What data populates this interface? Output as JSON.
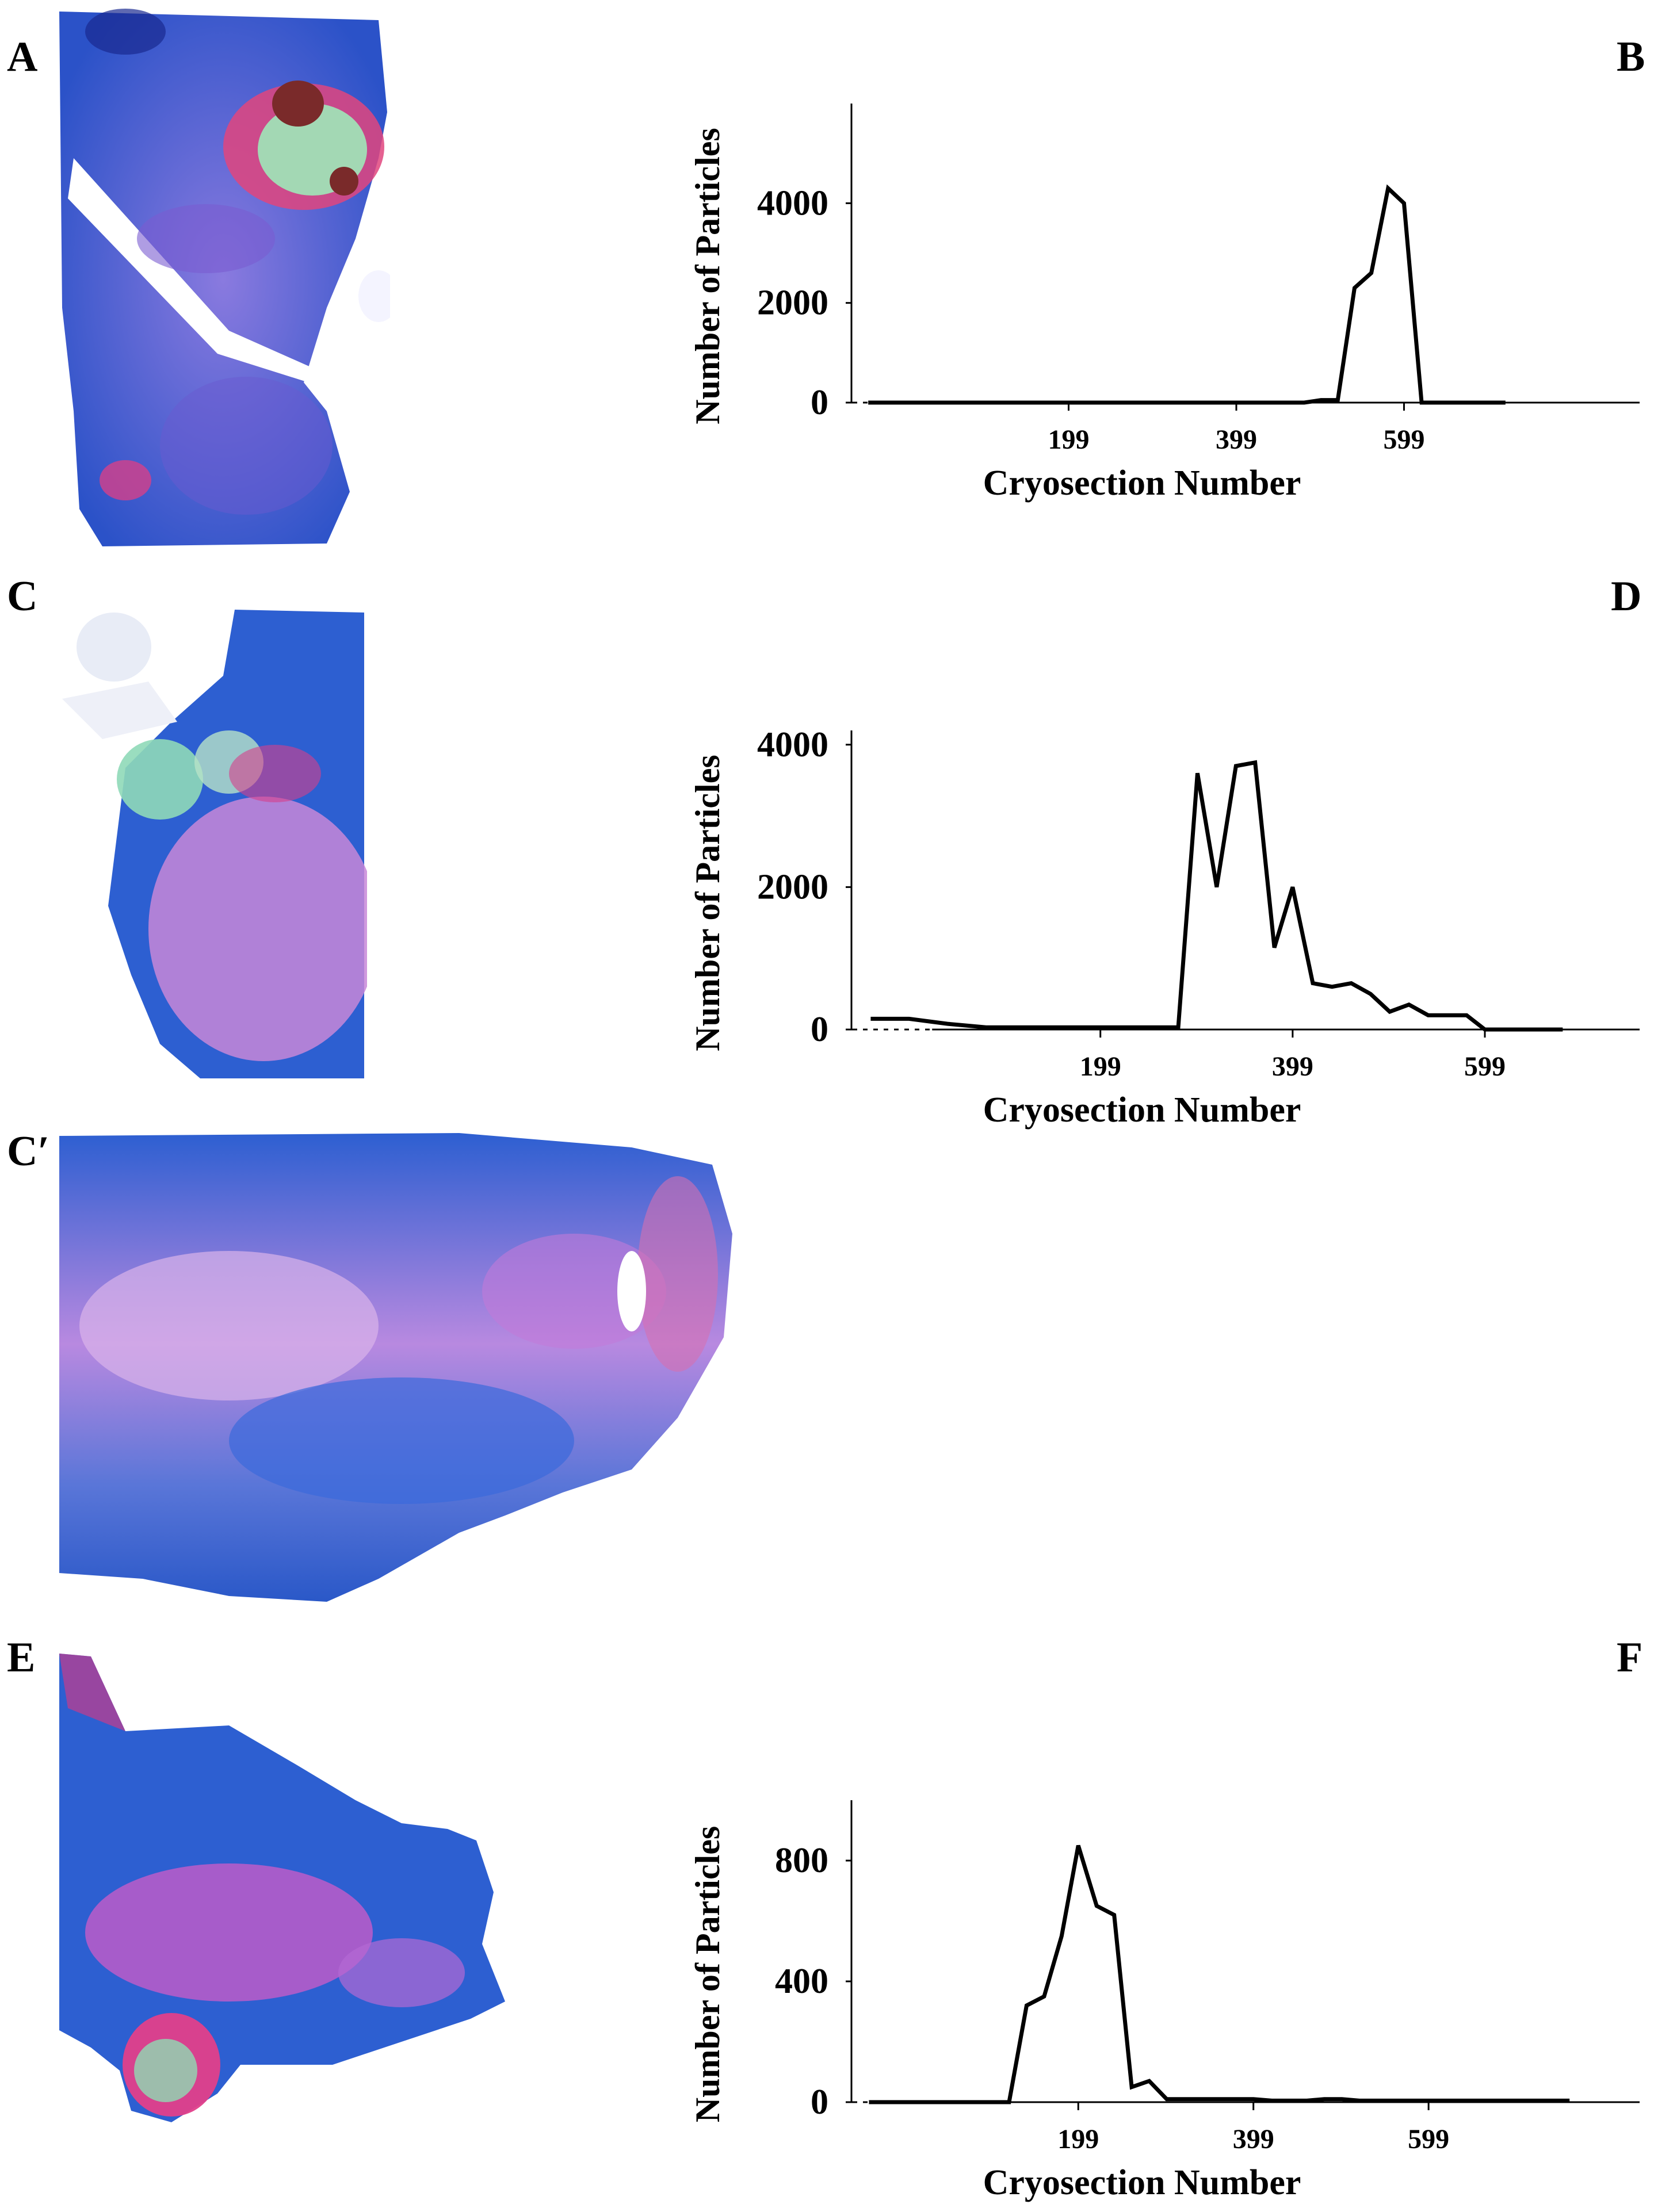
{
  "panels": {
    "A": {
      "label": "A"
    },
    "B": {
      "label": "B"
    },
    "C": {
      "label": "C"
    },
    "D": {
      "label": "D"
    },
    "Cprime": {
      "label": "C′"
    },
    "E": {
      "label": "E"
    },
    "F": {
      "label": "F"
    }
  },
  "colors": {
    "stain_blue": "#2d5fd1",
    "stain_pink": "#c77ad6",
    "stain_magenta": "#e0357e",
    "stain_green": "#7ee0b0",
    "line": "#000000"
  },
  "chart_data": [
    {
      "id": "B",
      "type": "line",
      "title": "",
      "xlabel": "Cryosection Number",
      "ylabel": "Number of Particles",
      "xlim": [
        -60,
        880
      ],
      "ylim": [
        0,
        6000
      ],
      "xticks": [
        199,
        399,
        599
      ],
      "yticks": [
        0,
        2000,
        4000
      ],
      "series": [
        {
          "name": "B",
          "x": [
            -40,
            0,
            40,
            80,
            120,
            160,
            199,
            240,
            280,
            320,
            360,
            399,
            440,
            480,
            500,
            520,
            540,
            560,
            580,
            599,
            620,
            640,
            680,
            720
          ],
          "y": [
            0,
            0,
            0,
            0,
            0,
            0,
            0,
            0,
            0,
            0,
            0,
            0,
            0,
            0,
            50,
            50,
            2300,
            2600,
            4300,
            4000,
            0,
            0,
            0,
            0
          ]
        }
      ]
    },
    {
      "id": "D",
      "type": "line",
      "title": "",
      "xlabel": "Cryosection Number",
      "ylabel": "Number of Particles",
      "xlim": [
        -60,
        760
      ],
      "ylim": [
        0,
        4200
      ],
      "xticks": [
        199,
        399,
        599
      ],
      "yticks": [
        0,
        2000,
        4000
      ],
      "series": [
        {
          "name": "D",
          "x": [
            -40,
            -20,
            0,
            40,
            80,
            120,
            160,
            199,
            240,
            280,
            300,
            320,
            340,
            360,
            380,
            399,
            420,
            440,
            460,
            480,
            500,
            520,
            540,
            560,
            580,
            599,
            620,
            640,
            660,
            680
          ],
          "y": [
            150,
            150,
            150,
            80,
            30,
            30,
            30,
            30,
            30,
            30,
            3600,
            2000,
            3700,
            3750,
            1150,
            2000,
            650,
            600,
            650,
            500,
            250,
            350,
            200,
            200,
            200,
            0,
            0,
            0,
            0,
            0
          ]
        }
      ]
    },
    {
      "id": "F",
      "type": "line",
      "title": "",
      "xlabel": "Cryosection Number",
      "ylabel": "Number of Particles",
      "xlim": [
        -60,
        840
      ],
      "ylim": [
        0,
        1000
      ],
      "xticks": [
        199,
        399,
        599
      ],
      "yticks": [
        0,
        400,
        800
      ],
      "series": [
        {
          "name": "F",
          "x": [
            -40,
            0,
            40,
            80,
            120,
            140,
            160,
            180,
            199,
            220,
            240,
            260,
            280,
            300,
            320,
            340,
            360,
            380,
            399,
            420,
            440,
            460,
            480,
            500,
            520,
            540,
            560,
            580,
            599,
            640,
            680,
            720,
            760
          ],
          "y": [
            0,
            0,
            0,
            0,
            0,
            320,
            350,
            550,
            850,
            650,
            620,
            50,
            70,
            10,
            10,
            10,
            10,
            10,
            10,
            5,
            5,
            5,
            10,
            10,
            5,
            5,
            5,
            5,
            5,
            5,
            5,
            5,
            5
          ]
        }
      ]
    }
  ]
}
